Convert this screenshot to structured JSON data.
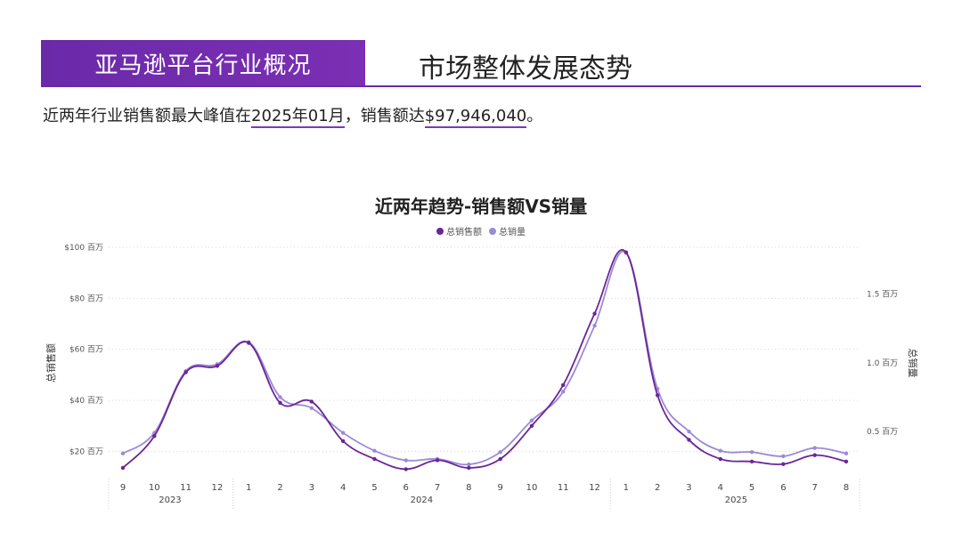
{
  "header": {
    "badge": "亚马逊平台行业概况",
    "title": "市场整体发展态势"
  },
  "summary": {
    "prefix": "近两年行业销售额最大峰值在",
    "peak_month": "2025年01月",
    "mid": "，销售额达",
    "peak_value": "$97,946,040",
    "suffix": "。"
  },
  "colors": {
    "accent": "#6a2aa8",
    "sales": "#6b2596",
    "volume": "#9b8ad6"
  },
  "chart_data": {
    "type": "line",
    "title": "近两年趋势-销售额VS销量",
    "legend_position": "top-center",
    "categories": [
      "9",
      "10",
      "11",
      "12",
      "1",
      "2",
      "3",
      "4",
      "5",
      "6",
      "7",
      "8",
      "9",
      "10",
      "11",
      "12",
      "1",
      "2",
      "3",
      "4",
      "5",
      "6",
      "7",
      "8"
    ],
    "year_groups": [
      {
        "label": "2023",
        "from": 0,
        "to": 3
      },
      {
        "label": "2024",
        "from": 4,
        "to": 15
      },
      {
        "label": "2025",
        "from": 16,
        "to": 23
      }
    ],
    "y_left": {
      "label": "总销售额",
      "range": [
        10,
        100
      ],
      "ticks": [
        20,
        40,
        60,
        80,
        100
      ],
      "tick_labels": [
        "$20 百万",
        "$40 百万",
        "$60 百万",
        "$80 百万",
        "$100 百万"
      ]
    },
    "y_right": {
      "label": "总销量",
      "range": [
        0.17,
        1.84
      ],
      "ticks": [
        0.5,
        1.0,
        1.5
      ],
      "tick_labels": [
        "0.5 百万",
        "1.0 百万",
        "1.5 百万"
      ]
    },
    "series": [
      {
        "name": "总销售额",
        "axis": "left",
        "values": [
          13.5,
          26,
          51,
          53.5,
          62.5,
          39,
          39.5,
          24,
          17,
          13,
          16.5,
          13.5,
          17,
          30,
          46,
          74,
          98,
          42,
          24.5,
          17,
          16,
          15,
          18.5,
          16
        ]
      },
      {
        "name": "总销量",
        "axis": "right",
        "values": [
          0.34,
          0.49,
          0.94,
          0.99,
          1.15,
          0.75,
          0.67,
          0.49,
          0.36,
          0.29,
          0.3,
          0.26,
          0.35,
          0.58,
          0.79,
          1.27,
          1.8,
          0.81,
          0.5,
          0.36,
          0.35,
          0.32,
          0.38,
          0.34
        ]
      }
    ],
    "grid": true
  }
}
